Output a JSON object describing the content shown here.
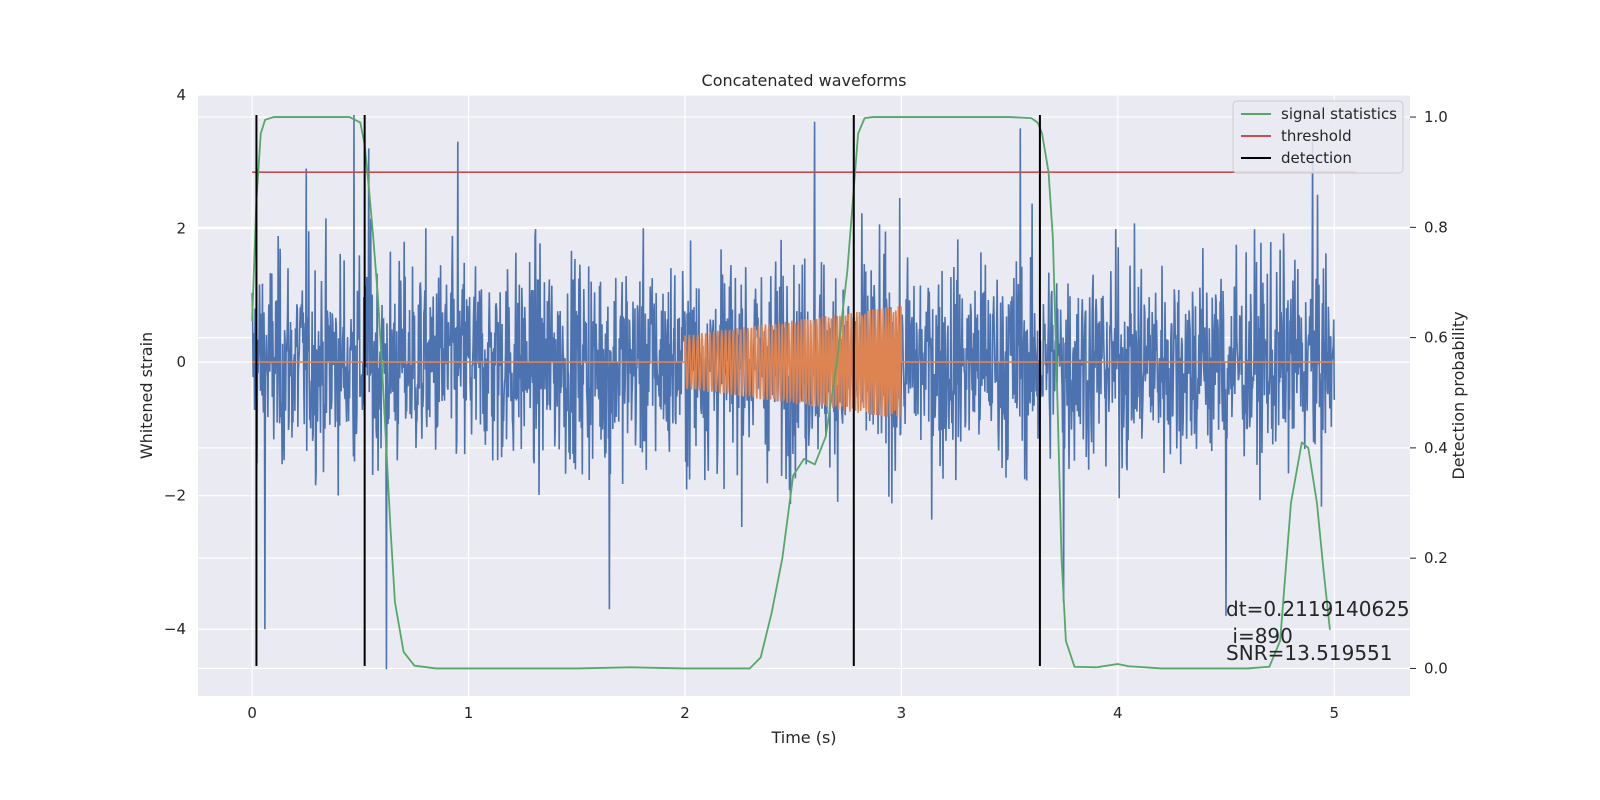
{
  "chart_data": {
    "type": "line",
    "title": "Concatenated waveforms",
    "xlabel": "Time (s)",
    "ylabel_left": "Whitened strain",
    "ylabel_right": "Detection probability",
    "xlim": [
      -0.25,
      5.35
    ],
    "ylim_left": [
      -5.0,
      4.0
    ],
    "ylim_right": [
      -0.05,
      1.04
    ],
    "xticks": [
      0,
      1,
      2,
      3,
      4,
      5
    ],
    "yticks_left": [
      -4,
      -2,
      0,
      2,
      4
    ],
    "yticks_right": [
      0.0,
      0.2,
      0.4,
      0.6,
      0.8,
      1.0
    ],
    "grid": true,
    "legend_placement": "top-right",
    "colors": {
      "background": "#eaeaf2",
      "strain": "#4c72b0",
      "injection": "#dd8452",
      "signal_statistics": "#55a868",
      "threshold": "#c44e52",
      "detection": "#000000"
    },
    "series": [
      {
        "name": "signal statistics",
        "axis": "right",
        "x": [
          0.0,
          0.02,
          0.04,
          0.06,
          0.1,
          0.15,
          0.3,
          0.45,
          0.5,
          0.52,
          0.54,
          0.56,
          0.58,
          0.6,
          0.62,
          0.64,
          0.66,
          0.7,
          0.75,
          0.85,
          1.0,
          1.5,
          1.75,
          2.0,
          2.3,
          2.35,
          2.4,
          2.45,
          2.5,
          2.55,
          2.6,
          2.65,
          2.7,
          2.75,
          2.78,
          2.8,
          2.83,
          2.87,
          2.95,
          3.2,
          3.5,
          3.6,
          3.63,
          3.65,
          3.68,
          3.7,
          3.72,
          3.74,
          3.76,
          3.8,
          3.9,
          3.95,
          4.0,
          4.05,
          4.2,
          4.6,
          4.7,
          4.75,
          4.8,
          4.85,
          4.88,
          4.92,
          4.95,
          4.98
        ],
        "y": [
          0.63,
          0.85,
          0.97,
          0.995,
          1.0,
          1.0,
          1.0,
          1.0,
          0.99,
          0.95,
          0.87,
          0.78,
          0.68,
          0.55,
          0.4,
          0.25,
          0.12,
          0.03,
          0.005,
          0.0,
          0.0,
          0.0,
          0.002,
          0.0,
          0.0,
          0.02,
          0.1,
          0.2,
          0.35,
          0.38,
          0.37,
          0.42,
          0.55,
          0.72,
          0.87,
          0.97,
          0.998,
          1.0,
          1.0,
          1.0,
          1.0,
          0.998,
          0.99,
          0.97,
          0.9,
          0.78,
          0.5,
          0.2,
          0.05,
          0.003,
          0.002,
          0.005,
          0.008,
          0.004,
          0.0,
          0.0,
          0.003,
          0.05,
          0.3,
          0.41,
          0.4,
          0.3,
          0.18,
          0.07
        ]
      },
      {
        "name": "threshold",
        "axis": "right",
        "x": [
          0.0,
          5.1
        ],
        "y": [
          0.9,
          0.9
        ]
      },
      {
        "name": "detection",
        "axis": "left",
        "x": [
          0.02,
          0.52,
          2.78,
          3.64
        ],
        "y_range": [
          -4.55,
          3.7
        ]
      },
      {
        "name": "",
        "role": "whitened strain",
        "axis": "left",
        "x_range": [
          0.0,
          5.0
        ],
        "amplitude_typical": 1.6,
        "spikes": [
          {
            "x": 0.06,
            "y": -4.0
          },
          {
            "x": 0.25,
            "y": 2.9
          },
          {
            "x": 0.47,
            "y": 3.7
          },
          {
            "x": 0.54,
            "y": 3.2
          },
          {
            "x": 0.62,
            "y": -4.6
          },
          {
            "x": 0.95,
            "y": 3.3
          },
          {
            "x": 1.65,
            "y": -3.7
          },
          {
            "x": 2.6,
            "y": 3.6
          },
          {
            "x": 3.55,
            "y": 3.5
          },
          {
            "x": 3.75,
            "y": -3.6
          },
          {
            "x": 4.5,
            "y": -3.8
          },
          {
            "x": 4.9,
            "y": 3.3
          }
        ]
      },
      {
        "name": "",
        "role": "injected chirp",
        "axis": "left",
        "x_range": [
          0.0,
          5.0
        ],
        "chirp_start": 2.0,
        "chirp_end": 3.0,
        "amplitude_start": 0.4,
        "amplitude_end": 0.85
      }
    ],
    "legend": [
      "signal statistics",
      "threshold",
      "detection"
    ],
    "annotation": {
      "line1": "dt=0.2119140625",
      "line2": " i=890",
      "line3": "SNR=13.519551"
    }
  }
}
